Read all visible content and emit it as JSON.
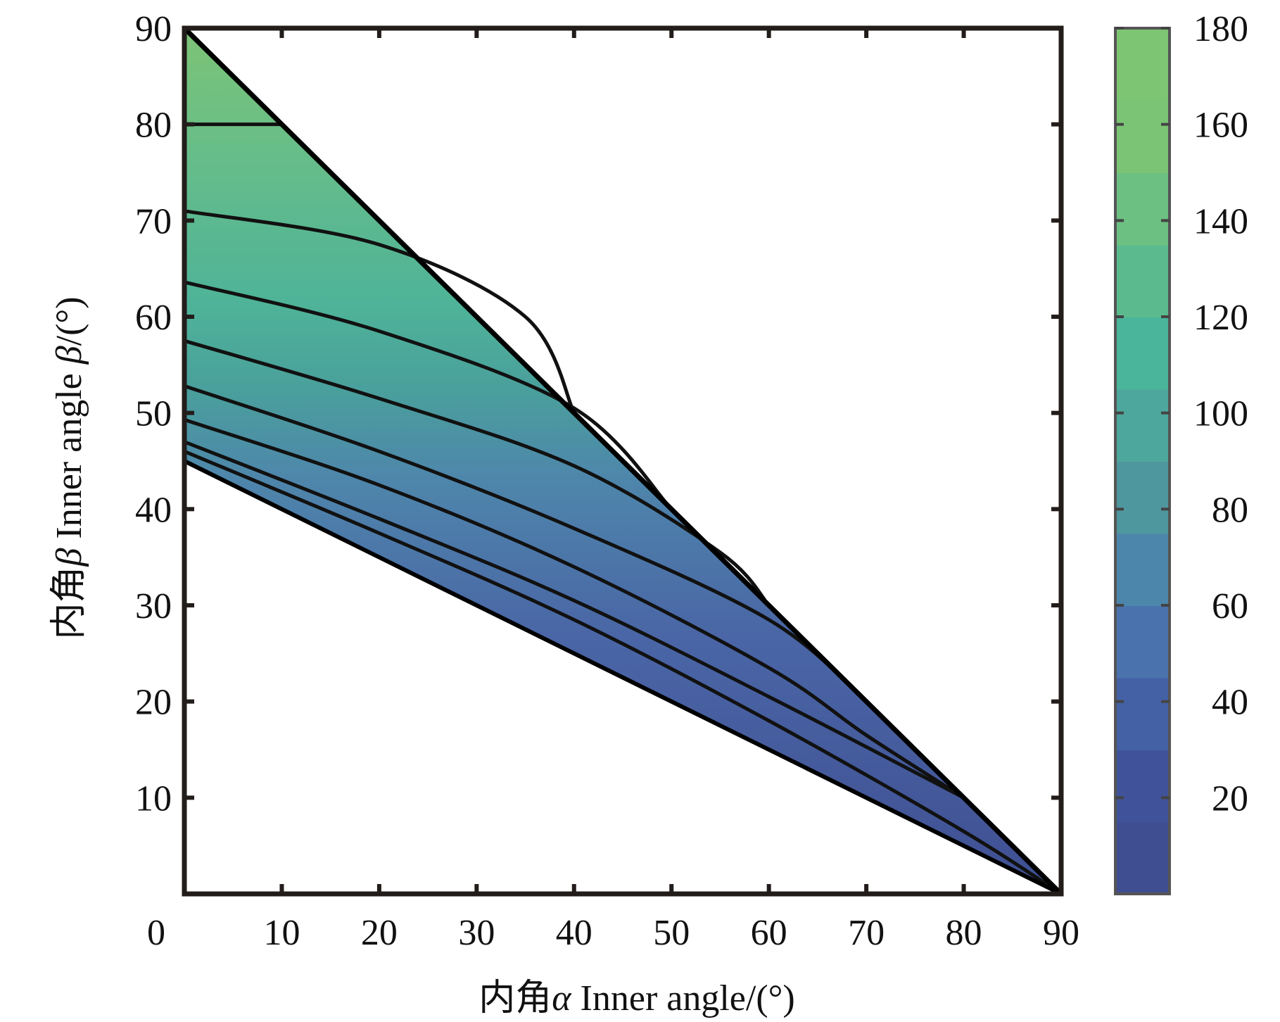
{
  "chart_data": {
    "type": "heatmap",
    "subtype": "filled-contour",
    "title": "",
    "xlabel": {
      "prefix": "内角",
      "symbol": "α",
      "suffix": " Inner angle/(°)"
    },
    "ylabel": {
      "prefix": "内角",
      "symbol": "β",
      "suffix": " Inner angle ",
      "symbol2": "β",
      "suffix2": "/(°)"
    },
    "xlim": [
      0,
      90
    ],
    "ylim": [
      0,
      90
    ],
    "x_ticks": [
      "0",
      "10",
      "20",
      "30",
      "40",
      "50",
      "60",
      "70",
      "80",
      "90"
    ],
    "y_ticks": [
      "10",
      "20",
      "30",
      "40",
      "50",
      "60",
      "70",
      "80",
      "90"
    ],
    "grid": false,
    "region": {
      "description_boundaries": [
        "beta = 90 - alpha",
        "beta = 45 - alpha/2"
      ],
      "vertices": [
        [
          0,
          90
        ],
        [
          90,
          0
        ],
        [
          0,
          45
        ]
      ]
    },
    "contours": [
      {
        "level": 10,
        "points": [
          [
            0,
            46.0
          ],
          [
            20,
            37.5
          ],
          [
            40,
            28.5
          ],
          [
            60,
            18.0
          ],
          [
            80,
            6.5
          ],
          [
            90,
            0
          ]
        ]
      },
      {
        "level": 20,
        "points": [
          [
            0,
            47.0
          ],
          [
            20,
            39.0
          ],
          [
            40,
            30.5
          ],
          [
            60,
            20.5
          ],
          [
            80,
            10.0
          ]
        ]
      },
      {
        "level": 40,
        "points": [
          [
            0,
            49.3
          ],
          [
            20,
            42.5
          ],
          [
            40,
            34.0
          ],
          [
            60,
            23.5
          ],
          [
            70,
            16.5
          ],
          [
            80,
            10.0
          ]
        ]
      },
      {
        "level": 60,
        "points": [
          [
            0,
            52.8
          ],
          [
            20,
            46.0
          ],
          [
            40,
            38.0
          ],
          [
            60,
            28.5
          ],
          [
            70,
            20.0
          ]
        ]
      },
      {
        "level": 80,
        "points": [
          [
            0,
            57.5
          ],
          [
            20,
            51.5
          ],
          [
            40,
            44.5
          ],
          [
            55,
            35.5
          ],
          [
            60,
            30.0
          ]
        ]
      },
      {
        "level": 100,
        "points": [
          [
            0,
            63.6
          ],
          [
            20,
            58.5
          ],
          [
            40,
            50.5
          ],
          [
            50,
            40.0
          ]
        ]
      },
      {
        "level": 120,
        "points": [
          [
            0,
            71.0
          ],
          [
            20,
            67.5
          ],
          [
            35,
            60.0
          ],
          [
            40,
            50.0
          ]
        ]
      },
      {
        "level": 140,
        "points": [
          [
            0,
            80.0
          ],
          [
            10,
            80.0
          ]
        ]
      }
    ],
    "colorbar": {
      "ticks": [
        "20",
        "40",
        "60",
        "80",
        "100",
        "120",
        "140",
        "160",
        "180"
      ],
      "range": [
        0,
        180
      ],
      "colors": {
        "low": "#3f4f92",
        "mid_low": "#4e73ad",
        "mid": "#4f8f9e",
        "mid_high": "#49b39a",
        "high": "#7bc475"
      }
    }
  }
}
